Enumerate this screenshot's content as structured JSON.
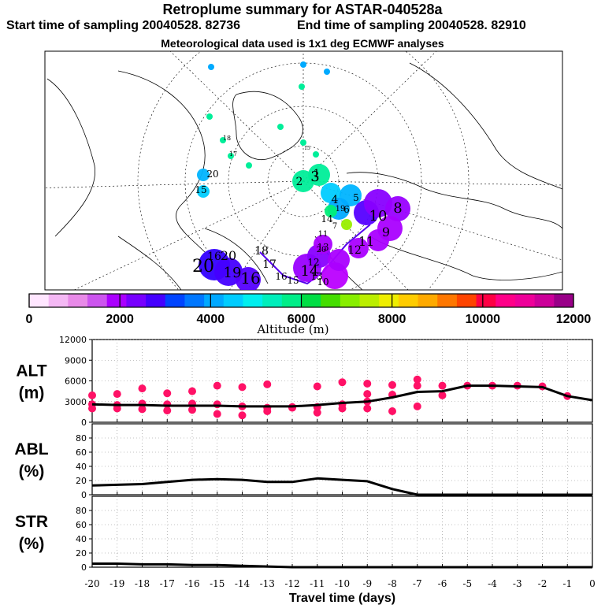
{
  "header": {
    "title": "Retroplume summary for ASTAR-040528a",
    "start": "Start time of sampling 20040528. 82736",
    "end": "End time of sampling 20040528. 82910",
    "met": "Meteorological data used is 1x1 deg ECMWF analyses"
  },
  "colorbar": {
    "label": "Altitude (m)",
    "tick_labels": [
      "0",
      "2000",
      "4000",
      "6000",
      "8000",
      "10000",
      "12000"
    ],
    "colors": [
      "#ffe6ff",
      "#f4b8f4",
      "#e88ae8",
      "#cc55ee",
      "#aa00ff",
      "#7700ff",
      "#4400ff",
      "#0044ff",
      "#0077ff",
      "#00a8ff",
      "#00ccff",
      "#00eeee",
      "#00eebb",
      "#00ee88",
      "#00dd44",
      "#44dd00",
      "#88ee00",
      "#bbee00",
      "#eeee00",
      "#ffcc00",
      "#ffaa00",
      "#ff7700",
      "#ff4400",
      "#ff0044",
      "#ff0088",
      "#ee0099",
      "#cc0099",
      "#990088"
    ]
  },
  "map": {
    "labels": [
      {
        "t": "20"
      },
      {
        "t": "20"
      },
      {
        "t": "19"
      },
      {
        "t": "16"
      },
      {
        "t": "18"
      },
      {
        "t": "17"
      },
      {
        "t": "16"
      },
      {
        "t": "15"
      },
      {
        "t": "14"
      },
      {
        "t": "13"
      },
      {
        "t": "12"
      },
      {
        "t": "11"
      },
      {
        "t": "10"
      },
      {
        "t": "9"
      },
      {
        "t": "8"
      },
      {
        "t": "7"
      },
      {
        "t": "6"
      },
      {
        "t": "5"
      },
      {
        "t": "4"
      },
      {
        "t": "3"
      },
      {
        "t": "2"
      },
      {
        "t": "1"
      },
      {
        "t": "19"
      },
      {
        "t": "20"
      },
      {
        "t": "16"
      },
      {
        "t": "15"
      },
      {
        "t": "14"
      },
      {
        "t": "13"
      },
      {
        "t": "12"
      },
      {
        "t": "10"
      },
      {
        "t": "20"
      },
      {
        "t": "18"
      },
      {
        "t": "17"
      },
      {
        "t": "15"
      },
      {
        "t": "11"
      }
    ]
  },
  "chart_data": [
    {
      "type": "line",
      "title": "ALT",
      "ylabel": "ALT (m)",
      "ylabel_lines": [
        "ALT",
        "(m)"
      ],
      "ylim": [
        0,
        12000
      ],
      "yticks": [
        "0",
        "3000",
        "6000",
        "9000",
        "12000"
      ],
      "x": [
        -20,
        -19,
        -18,
        -17,
        -16,
        -15,
        -14,
        -13,
        -12,
        -11,
        -10,
        -9,
        -8,
        -7,
        -6,
        -5,
        -4,
        -3,
        -2,
        -1,
        0
      ],
      "values": [
        2600,
        2500,
        2500,
        2400,
        2400,
        2400,
        2300,
        2300,
        2300,
        2500,
        2800,
        3000,
        3600,
        4400,
        4500,
        5300,
        5300,
        5200,
        5100,
        3800,
        3200
      ],
      "points": [
        {
          "x": -20,
          "y": 2600
        },
        {
          "x": -20,
          "y": 2000
        },
        {
          "x": -20,
          "y": 3900
        },
        {
          "x": -19,
          "y": 2500
        },
        {
          "x": -19,
          "y": 4100
        },
        {
          "x": -19,
          "y": 2000
        },
        {
          "x": -18,
          "y": 2700
        },
        {
          "x": -18,
          "y": 1900
        },
        {
          "x": -18,
          "y": 4900
        },
        {
          "x": -17,
          "y": 2600
        },
        {
          "x": -17,
          "y": 1700
        },
        {
          "x": -17,
          "y": 4200
        },
        {
          "x": -16,
          "y": 2700
        },
        {
          "x": -16,
          "y": 1800
        },
        {
          "x": -16,
          "y": 4500
        },
        {
          "x": -15,
          "y": 2600
        },
        {
          "x": -15,
          "y": 1200
        },
        {
          "x": -15,
          "y": 5300
        },
        {
          "x": -14,
          "y": 2300
        },
        {
          "x": -14,
          "y": 1000
        },
        {
          "x": -14,
          "y": 5100
        },
        {
          "x": -13,
          "y": 2100
        },
        {
          "x": -13,
          "y": 1600
        },
        {
          "x": -13,
          "y": 5500
        },
        {
          "x": -12,
          "y": 2100
        },
        {
          "x": -12,
          "y": 2200
        },
        {
          "x": -11,
          "y": 2200
        },
        {
          "x": -11,
          "y": 1400
        },
        {
          "x": -11,
          "y": 5200
        },
        {
          "x": -10,
          "y": 2600
        },
        {
          "x": -10,
          "y": 2000
        },
        {
          "x": -10,
          "y": 5800
        },
        {
          "x": -9,
          "y": 3000
        },
        {
          "x": -9,
          "y": 2000
        },
        {
          "x": -9,
          "y": 4100
        },
        {
          "x": -9,
          "y": 5600
        },
        {
          "x": -8,
          "y": 4000
        },
        {
          "x": -8,
          "y": 1600
        },
        {
          "x": -8,
          "y": 5400
        },
        {
          "x": -7,
          "y": 5300
        },
        {
          "x": -7,
          "y": 2300
        },
        {
          "x": -7,
          "y": 6200
        },
        {
          "x": -6,
          "y": 5300
        },
        {
          "x": -6,
          "y": 3900
        },
        {
          "x": -5,
          "y": 5300
        },
        {
          "x": -4,
          "y": 5300
        },
        {
          "x": -3,
          "y": 5300
        },
        {
          "x": -2,
          "y": 5200
        },
        {
          "x": -1,
          "y": 3800
        }
      ],
      "point_color": "#ff1166"
    },
    {
      "type": "line",
      "title": "ABL",
      "ylabel": "ABL (%)",
      "ylabel_lines": [
        "ABL",
        "(%)"
      ],
      "ylim": [
        0,
        100
      ],
      "yticks": [
        "0",
        "20",
        "40",
        "60",
        "80"
      ],
      "x": [
        -20,
        -19,
        -18,
        -17,
        -16,
        -15,
        -14,
        -13,
        -12,
        -11,
        -10,
        -9,
        -8,
        -7,
        -6,
        -5,
        -4,
        -3,
        -2,
        -1,
        0
      ],
      "values": [
        13,
        14,
        15,
        18,
        21,
        22,
        21,
        18,
        18,
        23,
        21,
        19,
        8,
        0,
        0,
        0,
        0,
        0,
        0,
        0,
        0
      ]
    },
    {
      "type": "line",
      "title": "STR",
      "ylabel": "STR (%)",
      "ylabel_lines": [
        "STR",
        "(%)"
      ],
      "ylim": [
        0,
        100
      ],
      "yticks": [
        "0",
        "20",
        "40",
        "60",
        "80"
      ],
      "x": [
        -20,
        -19,
        -18,
        -17,
        -16,
        -15,
        -14,
        -13,
        -12,
        -11,
        -10,
        -9,
        -8,
        -7,
        -6,
        -5,
        -4,
        -3,
        -2,
        -1,
        0
      ],
      "values": [
        5,
        5,
        4,
        4,
        3,
        3,
        2,
        1,
        0,
        0,
        0,
        0,
        0,
        0,
        0,
        0,
        0,
        0,
        0,
        0,
        0
      ],
      "xlabel": "Travel time (days)",
      "xticks": [
        "-20",
        "-19",
        "-18",
        "-17",
        "-16",
        "-15",
        "-14",
        "-13",
        "-12",
        "-11",
        "-10",
        "-9",
        "-8",
        "-7",
        "-6",
        "-5",
        "-4",
        "-3",
        "-2",
        "-1",
        "0"
      ]
    }
  ]
}
